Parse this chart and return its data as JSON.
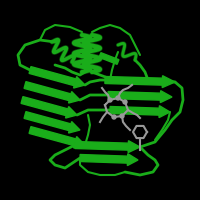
{
  "background_color": "#000000",
  "protein_color": "#1aad1a",
  "ligand_color": "#999999",
  "figsize": [
    2.0,
    2.0
  ],
  "dpi": 100
}
